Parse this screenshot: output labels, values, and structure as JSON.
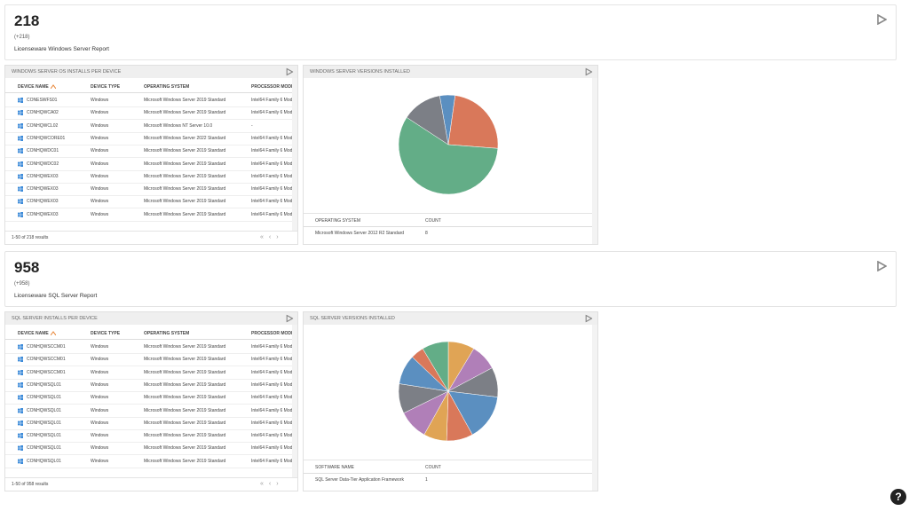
{
  "sections": [
    {
      "kpi": {
        "value": "218",
        "delta": "(+218)",
        "label": "Licenseware Windows Server Report"
      },
      "table": {
        "title": "WINDOWS SERVER OS INSTALLS PER DEVICE",
        "columns": [
          "DEVICE NAME",
          "DEVICE TYPE",
          "OPERATING SYSTEM",
          "PROCESSOR MODEL"
        ],
        "rows": [
          [
            "CONESWFS01",
            "Windows",
            "Microsoft Windows Server 2019 Standard",
            "Intel64 Family 6 Mod"
          ],
          [
            "CONHQWCA02",
            "Windows",
            "Microsoft Windows Server 2019 Standard",
            "Intel64 Family 6 Mod"
          ],
          [
            "CONHQWCL02",
            "Windows",
            "Microsoft Windows NT Server 10.0",
            "-"
          ],
          [
            "CONHQWCORE01",
            "Windows",
            "Microsoft Windows Server 2022 Standard",
            "Intel64 Family 6 Mod"
          ],
          [
            "CONHQWDC01",
            "Windows",
            "Microsoft Windows Server 2019 Standard",
            "Intel64 Family 6 Mod"
          ],
          [
            "CONHQWDC02",
            "Windows",
            "Microsoft Windows Server 2019 Standard",
            "Intel64 Family 6 Mod"
          ],
          [
            "CONHQWEX03",
            "Windows",
            "Microsoft Windows Server 2019 Standard",
            "Intel64 Family 6 Mod"
          ],
          [
            "CONHQWEX03",
            "Windows",
            "Microsoft Windows Server 2019 Standard",
            "Intel64 Family 6 Mod"
          ],
          [
            "CONHQWEX03",
            "Windows",
            "Microsoft Windows Server 2019 Standard",
            "Intel64 Family 6 Mod"
          ],
          [
            "CONHQWEX03",
            "Windows",
            "Microsoft Windows Server 2019 Standard",
            "Intel64 Family 6 Mod"
          ]
        ],
        "footer": "1-50 of 218 results"
      },
      "pie": {
        "title": "WINDOWS SERVER VERSIONS INSTALLED",
        "slices": [
          {
            "value": 5,
            "color": "#5b8fc0"
          },
          {
            "value": 24,
            "color": "#d9785a"
          },
          {
            "value": 58,
            "color": "#63ad87"
          },
          {
            "value": 13,
            "color": "#7c7f86"
          }
        ],
        "columns": [
          "OPERATING SYSTEM",
          "COUNT"
        ],
        "rows": [
          [
            "Microsoft Windows Server 2012 R2 Standard",
            "8"
          ]
        ]
      }
    },
    {
      "kpi": {
        "value": "958",
        "delta": "(+958)",
        "label": "Licenseware SQL Server Report"
      },
      "table": {
        "title": "SQL SERVER INSTALLS PER DEVICE",
        "columns": [
          "DEVICE NAME",
          "DEVICE TYPE",
          "OPERATING SYSTEM",
          "PROCESSOR MODEL"
        ],
        "rows": [
          [
            "CONHQWSCCM01",
            "Windows",
            "Microsoft Windows Server 2019 Standard",
            "Intel64 Family 6 Mod"
          ],
          [
            "CONHQWSCCM01",
            "Windows",
            "Microsoft Windows Server 2019 Standard",
            "Intel64 Family 6 Mod"
          ],
          [
            "CONHQWSCCM01",
            "Windows",
            "Microsoft Windows Server 2019 Standard",
            "Intel64 Family 6 Mod"
          ],
          [
            "CONHQWSQL01",
            "Windows",
            "Microsoft Windows Server 2019 Standard",
            "Intel64 Family 6 Mod"
          ],
          [
            "CONHQWSQL01",
            "Windows",
            "Microsoft Windows Server 2019 Standard",
            "Intel64 Family 6 Mod"
          ],
          [
            "CONHQWSQL01",
            "Windows",
            "Microsoft Windows Server 2019 Standard",
            "Intel64 Family 6 Mod"
          ],
          [
            "CONHQWSQL01",
            "Windows",
            "Microsoft Windows Server 2019 Standard",
            "Intel64 Family 6 Mod"
          ],
          [
            "CONHQWSQL01",
            "Windows",
            "Microsoft Windows Server 2019 Standard",
            "Intel64 Family 6 Mod"
          ],
          [
            "CONHQWSQL01",
            "Windows",
            "Microsoft Windows Server 2019 Standard",
            "Intel64 Family 6 Mod"
          ],
          [
            "CONHQWSQL01",
            "Windows",
            "Microsoft Windows Server 2019 Standard",
            "Intel64 Family 6 Mod"
          ]
        ],
        "footer": "1-50 of 958 results"
      },
      "pie": {
        "title": "SQL SERVER VERSIONS INSTALLED",
        "slices": [
          {
            "value": 8,
            "color": "#e0a455"
          },
          {
            "value": 8,
            "color": "#b07fb8"
          },
          {
            "value": 9,
            "color": "#7c7f86"
          },
          {
            "value": 14,
            "color": "#5b8fc0"
          },
          {
            "value": 8,
            "color": "#d9785a"
          },
          {
            "value": 7,
            "color": "#e0a455"
          },
          {
            "value": 9,
            "color": "#b07fb8"
          },
          {
            "value": 9,
            "color": "#7c7f86"
          },
          {
            "value": 9,
            "color": "#5b8fc0"
          },
          {
            "value": 4,
            "color": "#d9785a"
          },
          {
            "value": 8,
            "color": "#63ad87"
          }
        ],
        "columns": [
          "SOFTWARE NAME",
          "COUNT"
        ],
        "rows": [
          [
            "SQL Server Data-Tier Application Framework",
            "1"
          ]
        ]
      }
    }
  ],
  "help": "?"
}
